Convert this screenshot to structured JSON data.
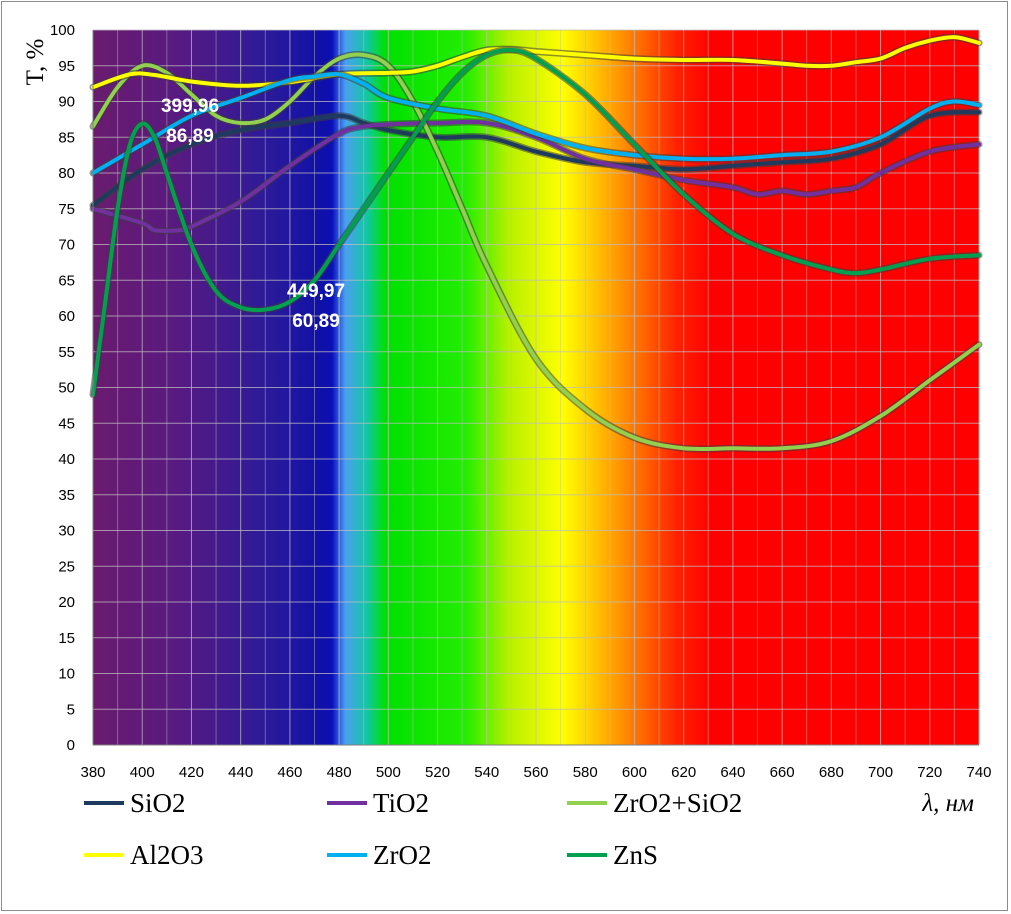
{
  "chart_data": {
    "type": "line",
    "title": "",
    "xlabel": "λ, нм",
    "ylabel": "T, %",
    "xlim": [
      380,
      740
    ],
    "ylim": [
      0,
      100
    ],
    "x_ticks": [
      380,
      400,
      420,
      440,
      460,
      480,
      500,
      520,
      540,
      560,
      580,
      600,
      620,
      640,
      660,
      680,
      700,
      720,
      740
    ],
    "y_ticks": [
      0,
      5,
      10,
      15,
      20,
      25,
      30,
      35,
      40,
      45,
      50,
      55,
      60,
      65,
      70,
      75,
      80,
      85,
      90,
      95,
      100
    ],
    "grid": true,
    "background": "visible spectrum (violet → red)",
    "series": [
      {
        "name": "SiO2",
        "color": "#1f3a5f",
        "x": [
          380,
          400,
          420,
          440,
          460,
          480,
          490,
          500,
          520,
          540,
          560,
          580,
          600,
          620,
          640,
          660,
          680,
          700,
          720,
          740
        ],
        "y": [
          75.5,
          80.5,
          84,
          86,
          87,
          88,
          87,
          86,
          85,
          85,
          83,
          81.5,
          81,
          80.5,
          81,
          81.5,
          82,
          84,
          88,
          88.5
        ]
      },
      {
        "name": "TiO2",
        "color": "#7030a0",
        "x": [
          380,
          400,
          405,
          415,
          420,
          440,
          460,
          480,
          490,
          500,
          520,
          540,
          560,
          580,
          600,
          620,
          640,
          650,
          660,
          670,
          680,
          690,
          700,
          720,
          740
        ],
        "y": [
          75,
          73,
          72,
          72,
          72.5,
          76,
          81,
          85.5,
          86.5,
          86.8,
          87,
          87,
          85,
          82,
          80.5,
          79,
          78,
          77,
          77.5,
          77,
          77.5,
          78,
          80,
          83,
          84
        ]
      },
      {
        "name": "ZrO2+SiO2",
        "color": "#92d050",
        "x": [
          380,
          390,
          400,
          410,
          420,
          430,
          440,
          450,
          460,
          470,
          480,
          490,
          500,
          510,
          520,
          530,
          540,
          560,
          580,
          600,
          620,
          640,
          660,
          680,
          700,
          720,
          740
        ],
        "y": [
          86.5,
          92,
          95,
          94,
          91,
          88,
          87,
          87.5,
          90,
          93.5,
          96,
          96.5,
          95,
          90,
          83,
          75,
          67,
          54,
          47,
          43,
          41.5,
          41.5,
          41.5,
          42.5,
          46,
          51,
          56
        ]
      },
      {
        "name": "Al2O3",
        "color": "#ffff00",
        "x": [
          380,
          395,
          405,
          420,
          440,
          460,
          480,
          500,
          510,
          520,
          530,
          540,
          550,
          560,
          580,
          600,
          620,
          640,
          660,
          670,
          680,
          690,
          700,
          710,
          720,
          730,
          740
        ],
        "y": [
          92,
          93.8,
          93.7,
          92.8,
          92.2,
          92.7,
          93.8,
          94,
          94.2,
          95,
          96.2,
          97.2,
          97.3,
          97,
          96.5,
          96,
          95.8,
          95.8,
          95.3,
          95,
          95,
          95.5,
          96,
          97.5,
          98.5,
          99,
          98.2
        ]
      },
      {
        "name": "ZrO2",
        "color": "#00b0f0",
        "x": [
          380,
          400,
          420,
          440,
          460,
          470,
          480,
          490,
          500,
          520,
          540,
          560,
          580,
          600,
          620,
          640,
          660,
          680,
          700,
          720,
          730,
          740
        ],
        "y": [
          80,
          84,
          88,
          90.5,
          93,
          93.5,
          93.8,
          92.5,
          90.5,
          89,
          88,
          85.5,
          83.5,
          82.5,
          82,
          82,
          82.5,
          83,
          85,
          89,
          90,
          89.5
        ]
      },
      {
        "name": "ZnS",
        "color": "#00a050",
        "x": [
          380,
          385,
          390,
          395,
          400,
          405,
          410,
          420,
          430,
          440,
          450,
          460,
          470,
          480,
          490,
          500,
          510,
          520,
          530,
          540,
          550,
          560,
          580,
          600,
          620,
          640,
          660,
          680,
          690,
          700,
          720,
          740
        ],
        "y": [
          49,
          62,
          75,
          84,
          86.9,
          85,
          80,
          70,
          63.5,
          61.2,
          60.9,
          62,
          65,
          70,
          75,
          80,
          85,
          90,
          94,
          96.5,
          97.2,
          96,
          91,
          84,
          77,
          71.5,
          68.5,
          66.5,
          66,
          66.5,
          68,
          68.5
        ]
      }
    ],
    "annotations": [
      {
        "x": 400,
        "y": 86.89,
        "line1": "399,96",
        "line2": "86,89"
      },
      {
        "x": 450,
        "y": 60.89,
        "line1": "449,97",
        "line2": "60,89"
      }
    ],
    "legend": {
      "position": "bottom",
      "columns": 3
    }
  }
}
